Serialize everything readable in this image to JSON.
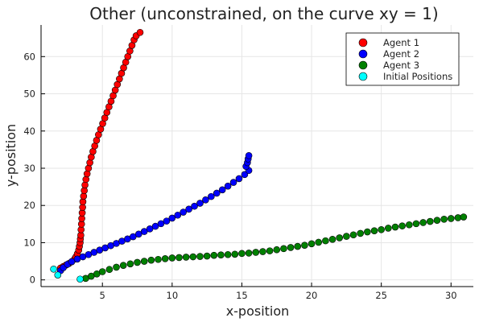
{
  "chart_data": {
    "type": "scatter",
    "title": "Other (unconstrained, on the curve xy = 1)",
    "xlabel": "x-position",
    "ylabel": "y-position",
    "xlim": [
      0.6,
      31.6
    ],
    "ylim": [
      -1.8,
      68.5
    ],
    "xticks": [
      5,
      10,
      15,
      20,
      25,
      30
    ],
    "yticks": [
      0,
      10,
      20,
      30,
      40,
      50,
      60
    ],
    "grid": true,
    "legend_position": "top-right",
    "series": [
      {
        "name": "Agent 1",
        "color": "#ff0000",
        "points": [
          [
            2.0,
            3.2
          ],
          [
            2.2,
            3.6
          ],
          [
            2.4,
            4.0
          ],
          [
            2.6,
            4.4
          ],
          [
            2.8,
            4.9
          ],
          [
            3.0,
            5.6
          ],
          [
            3.1,
            6.2
          ],
          [
            3.2,
            7.0
          ],
          [
            3.3,
            8.0
          ],
          [
            3.35,
            9.0
          ],
          [
            3.4,
            10.0
          ],
          [
            3.42,
            11.0
          ],
          [
            3.45,
            12.0
          ],
          [
            3.47,
            13.5
          ],
          [
            3.5,
            15.0
          ],
          [
            3.52,
            16.5
          ],
          [
            3.55,
            18.0
          ],
          [
            3.58,
            19.5
          ],
          [
            3.6,
            21.0
          ],
          [
            3.65,
            22.5
          ],
          [
            3.7,
            24.0
          ],
          [
            3.75,
            25.5
          ],
          [
            3.82,
            27.0
          ],
          [
            3.9,
            28.5
          ],
          [
            4.0,
            30.0
          ],
          [
            4.1,
            31.5
          ],
          [
            4.2,
            33.0
          ],
          [
            4.32,
            34.5
          ],
          [
            4.45,
            36.0
          ],
          [
            4.58,
            37.5
          ],
          [
            4.72,
            39.0
          ],
          [
            4.87,
            40.5
          ],
          [
            5.02,
            42.0
          ],
          [
            5.17,
            43.5
          ],
          [
            5.32,
            45.0
          ],
          [
            5.47,
            46.5
          ],
          [
            5.62,
            48.0
          ],
          [
            5.77,
            49.5
          ],
          [
            5.92,
            51.0
          ],
          [
            6.07,
            52.5
          ],
          [
            6.22,
            54.0
          ],
          [
            6.37,
            55.5
          ],
          [
            6.52,
            57.0
          ],
          [
            6.67,
            58.5
          ],
          [
            6.82,
            60.0
          ],
          [
            6.97,
            61.5
          ],
          [
            7.12,
            63.0
          ],
          [
            7.27,
            64.5
          ],
          [
            7.42,
            65.6
          ],
          [
            7.7,
            66.5
          ]
        ]
      },
      {
        "name": "Agent 2",
        "color": "#0000ff",
        "points": [
          [
            2.0,
            2.5
          ],
          [
            2.2,
            3.3
          ],
          [
            2.5,
            4.2
          ],
          [
            2.8,
            4.9
          ],
          [
            3.2,
            5.6
          ],
          [
            3.6,
            6.2
          ],
          [
            4.0,
            6.8
          ],
          [
            4.4,
            7.4
          ],
          [
            4.8,
            8.0
          ],
          [
            5.2,
            8.6
          ],
          [
            5.6,
            9.2
          ],
          [
            6.0,
            9.8
          ],
          [
            6.4,
            10.4
          ],
          [
            6.8,
            11.0
          ],
          [
            7.2,
            11.6
          ],
          [
            7.6,
            12.3
          ],
          [
            8.0,
            13.0
          ],
          [
            8.4,
            13.7
          ],
          [
            8.8,
            14.4
          ],
          [
            9.2,
            15.1
          ],
          [
            9.6,
            15.8
          ],
          [
            10.0,
            16.6
          ],
          [
            10.4,
            17.4
          ],
          [
            10.8,
            18.2
          ],
          [
            11.2,
            19.0
          ],
          [
            11.6,
            19.8
          ],
          [
            12.0,
            20.6
          ],
          [
            12.4,
            21.5
          ],
          [
            12.8,
            22.4
          ],
          [
            13.2,
            23.3
          ],
          [
            13.6,
            24.2
          ],
          [
            14.0,
            25.2
          ],
          [
            14.4,
            26.2
          ],
          [
            14.8,
            27.2
          ],
          [
            15.2,
            28.3
          ],
          [
            15.5,
            29.4
          ],
          [
            15.3,
            30.5
          ],
          [
            15.4,
            31.5
          ],
          [
            15.45,
            32.5
          ],
          [
            15.5,
            33.4
          ]
        ]
      },
      {
        "name": "Agent 3",
        "color": "#008000",
        "points": [
          [
            3.8,
            0.4
          ],
          [
            4.2,
            1.0
          ],
          [
            4.6,
            1.6
          ],
          [
            5.0,
            2.2
          ],
          [
            5.5,
            2.8
          ],
          [
            6.0,
            3.4
          ],
          [
            6.5,
            3.9
          ],
          [
            7.0,
            4.3
          ],
          [
            7.5,
            4.7
          ],
          [
            8.0,
            5.0
          ],
          [
            8.5,
            5.3
          ],
          [
            9.0,
            5.5
          ],
          [
            9.5,
            5.7
          ],
          [
            10.0,
            5.9
          ],
          [
            10.5,
            6.0
          ],
          [
            11.0,
            6.1
          ],
          [
            11.5,
            6.2
          ],
          [
            12.0,
            6.3
          ],
          [
            12.5,
            6.4
          ],
          [
            13.0,
            6.6
          ],
          [
            13.5,
            6.7
          ],
          [
            14.0,
            6.8
          ],
          [
            14.5,
            6.9
          ],
          [
            15.0,
            7.1
          ],
          [
            15.5,
            7.2
          ],
          [
            16.0,
            7.4
          ],
          [
            16.5,
            7.6
          ],
          [
            17.0,
            7.8
          ],
          [
            17.5,
            8.1
          ],
          [
            18.0,
            8.4
          ],
          [
            18.5,
            8.7
          ],
          [
            19.0,
            9.0
          ],
          [
            19.5,
            9.3
          ],
          [
            20.0,
            9.7
          ],
          [
            20.5,
            10.1
          ],
          [
            21.0,
            10.5
          ],
          [
            21.5,
            10.9
          ],
          [
            22.0,
            11.3
          ],
          [
            22.5,
            11.7
          ],
          [
            23.0,
            12.1
          ],
          [
            23.5,
            12.5
          ],
          [
            24.0,
            12.9
          ],
          [
            24.5,
            13.2
          ],
          [
            25.0,
            13.5
          ],
          [
            25.5,
            13.9
          ],
          [
            26.0,
            14.2
          ],
          [
            26.5,
            14.5
          ],
          [
            27.0,
            14.8
          ],
          [
            27.5,
            15.1
          ],
          [
            28.0,
            15.4
          ],
          [
            28.5,
            15.7
          ],
          [
            29.0,
            16.0
          ],
          [
            29.5,
            16.3
          ],
          [
            30.0,
            16.5
          ],
          [
            30.5,
            16.7
          ],
          [
            30.9,
            16.9
          ]
        ]
      },
      {
        "name": "Initial Positions",
        "color": "#00ffff",
        "points": [
          [
            1.5,
            2.9
          ],
          [
            1.8,
            1.3
          ],
          [
            3.4,
            0.2
          ]
        ]
      }
    ]
  }
}
